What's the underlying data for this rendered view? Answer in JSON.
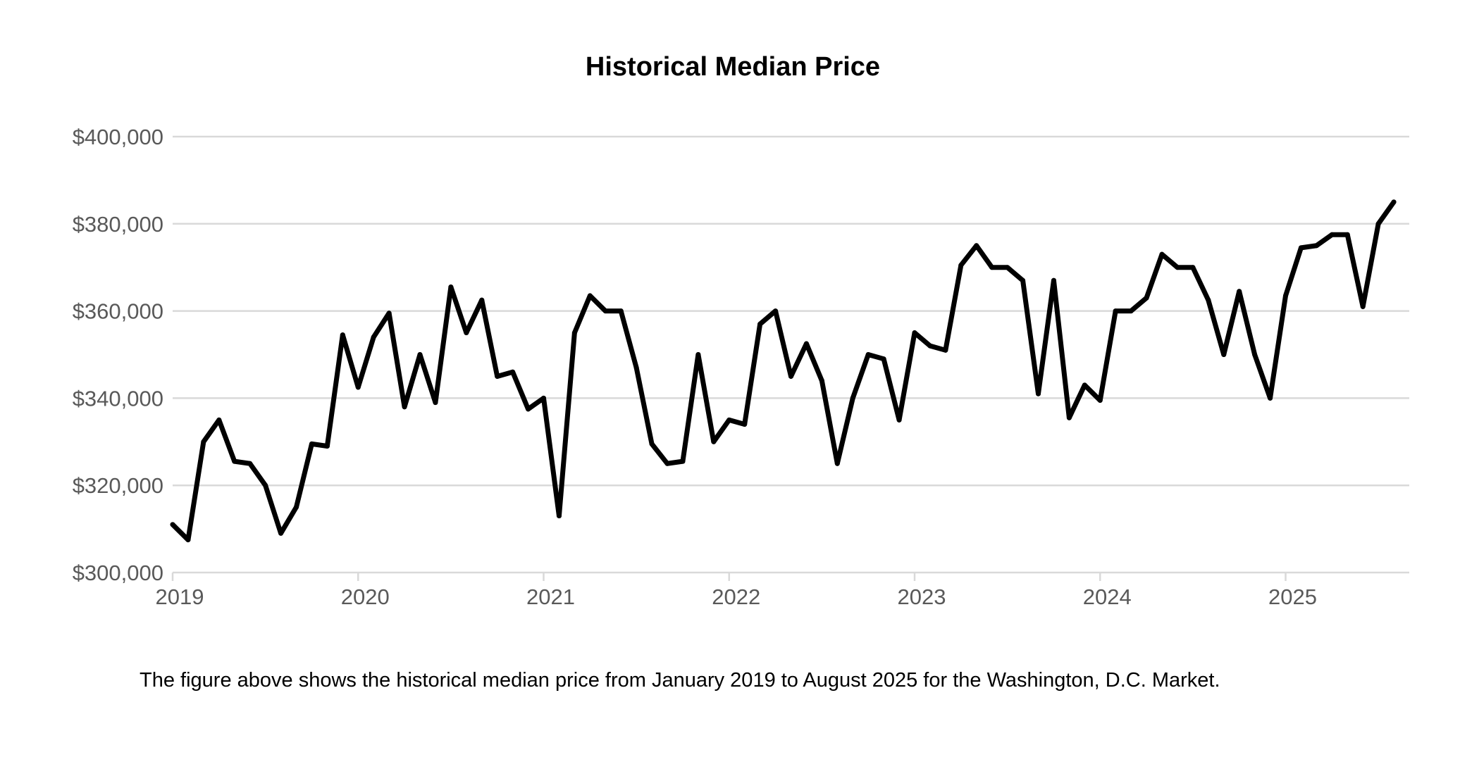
{
  "caption": "The figure above shows the historical median price from January 2019 to August 2025 for the Washington, D.C. Market.",
  "chart_data": {
    "type": "line",
    "title": "Historical Median Price",
    "xlabel": "",
    "ylabel": "",
    "ylim": [
      300000,
      400000
    ],
    "y_ticks": [
      300000,
      320000,
      340000,
      360000,
      380000,
      400000
    ],
    "y_tick_labels": [
      "$300,000",
      "$320,000",
      "$340,000",
      "$360,000",
      "$380,000",
      "$400,000"
    ],
    "x_range": [
      "2019-01",
      "2025-09"
    ],
    "x_ticks": [
      "2019-01",
      "2020-01",
      "2021-01",
      "2022-01",
      "2023-01",
      "2024-01",
      "2025-01"
    ],
    "x_tick_labels": [
      "2019",
      "2020",
      "2021",
      "2022",
      "2023",
      "2024",
      "2025"
    ],
    "grid": true,
    "legend": "none",
    "line_color": "#000000",
    "grid_color": "#d9d9d9",
    "x": [
      "2019-01",
      "2019-02",
      "2019-03",
      "2019-04",
      "2019-05",
      "2019-06",
      "2019-07",
      "2019-08",
      "2019-09",
      "2019-10",
      "2019-11",
      "2019-12",
      "2020-01",
      "2020-02",
      "2020-03",
      "2020-04",
      "2020-05",
      "2020-06",
      "2020-07",
      "2020-08",
      "2020-09",
      "2020-10",
      "2020-11",
      "2020-12",
      "2021-01",
      "2021-02",
      "2021-03",
      "2021-04",
      "2021-05",
      "2021-06",
      "2021-07",
      "2021-08",
      "2021-09",
      "2021-10",
      "2021-11",
      "2021-12",
      "2022-01",
      "2022-02",
      "2022-03",
      "2022-04",
      "2022-05",
      "2022-06",
      "2022-07",
      "2022-08",
      "2022-09",
      "2022-10",
      "2022-11",
      "2022-12",
      "2023-01",
      "2023-02",
      "2023-03",
      "2023-04",
      "2023-05",
      "2023-06",
      "2023-07",
      "2023-08",
      "2023-09",
      "2023-10",
      "2023-11",
      "2023-12",
      "2024-01",
      "2024-02",
      "2024-03",
      "2024-04",
      "2024-05",
      "2024-06",
      "2024-07",
      "2024-08",
      "2024-09",
      "2024-10",
      "2024-11",
      "2024-12",
      "2025-01",
      "2025-02",
      "2025-03",
      "2025-04",
      "2025-05",
      "2025-06",
      "2025-07",
      "2025-08"
    ],
    "values": [
      311000,
      307500,
      330000,
      335000,
      325500,
      325000,
      320000,
      309000,
      315000,
      329500,
      329000,
      354500,
      342500,
      354000,
      359500,
      338000,
      350000,
      339000,
      365500,
      355000,
      362500,
      345000,
      346000,
      337500,
      340000,
      313000,
      355000,
      363500,
      360000,
      360000,
      347000,
      329500,
      325000,
      325500,
      350000,
      330000,
      335000,
      334000,
      357000,
      360000,
      345000,
      352500,
      344000,
      325000,
      340000,
      350000,
      349000,
      335000,
      355000,
      352000,
      351000,
      370500,
      375000,
      370000,
      370000,
      367000,
      341000,
      367000,
      335500,
      343000,
      339500,
      360000,
      360000,
      363000,
      373000,
      370000,
      370000,
      362500,
      350000,
      364500,
      350000,
      340000,
      363500,
      374500,
      375000,
      377500,
      377500,
      361000,
      380000,
      385000
    ]
  }
}
